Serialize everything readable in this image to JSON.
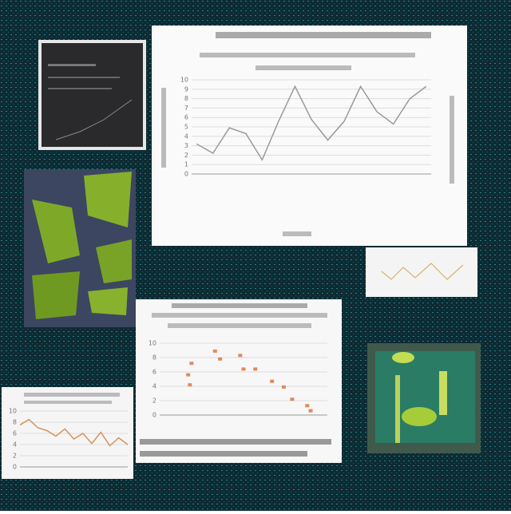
{
  "chart_data": [
    {
      "type": "line",
      "color": "#9a9a9a",
      "x": [
        0,
        1,
        2,
        3,
        4,
        5,
        6,
        7,
        8,
        9,
        10,
        11,
        12,
        13,
        14
      ],
      "values": [
        3.2,
        2.2,
        4.9,
        4.3,
        1.5,
        5.6,
        9.3,
        5.8,
        3.6,
        5.6,
        9.3,
        6.6,
        5.3,
        8.0,
        9.3
      ],
      "xlim": [
        -0.3,
        14.3
      ],
      "ylim": [
        0,
        10
      ],
      "yticks": [
        0,
        1,
        2,
        3,
        4,
        5,
        6,
        7,
        8,
        9,
        10
      ],
      "grid": true
    },
    {
      "type": "scatter",
      "color": "#e08a5a",
      "x": [
        1.7,
        1.9,
        1.8,
        3.3,
        3.6,
        4.8,
        5.0,
        5.7,
        6.7,
        7.4,
        7.9,
        8.8,
        9.0
      ],
      "values": [
        5.6,
        7.2,
        4.2,
        8.9,
        7.8,
        8.3,
        6.4,
        6.4,
        4.7,
        3.9,
        2.2,
        1.3,
        0.6
      ],
      "xlim": [
        0,
        10
      ],
      "ylim": [
        0,
        10
      ],
      "yticks": [
        0,
        2,
        4,
        6,
        8,
        10
      ],
      "grid": true
    },
    {
      "type": "line",
      "color": "#d9925a",
      "x": [
        0,
        1,
        2,
        3,
        4,
        5,
        6,
        7,
        8,
        9,
        10,
        11,
        12
      ],
      "values": [
        7.5,
        8.5,
        7.0,
        6.5,
        5.5,
        6.8,
        5.0,
        6.0,
        4.2,
        6.2,
        3.8,
        5.2,
        4.0
      ],
      "xlim": [
        0,
        12
      ],
      "ylim": [
        0,
        10
      ],
      "yticks": [
        0,
        2,
        4,
        6,
        8,
        10
      ],
      "grid": true
    }
  ]
}
